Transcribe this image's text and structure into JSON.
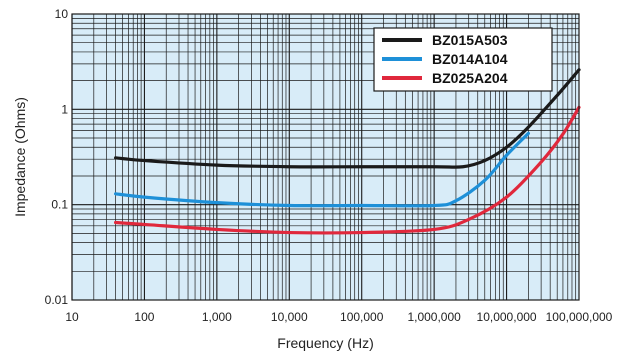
{
  "chart_data": {
    "type": "line",
    "title": "",
    "xlabel": "Frequency (Hz)",
    "ylabel": "Impedance (Ohms)",
    "x_scale": "log",
    "y_scale": "log",
    "xlim": [
      10,
      100000000
    ],
    "ylim": [
      0.01,
      10
    ],
    "grid": true,
    "legend_position": "top-right",
    "x_ticks": [
      10,
      100,
      1000,
      10000,
      100000,
      1000000,
      10000000,
      100000000
    ],
    "x_tick_labels": [
      "10",
      "100",
      "1,000",
      "10,000",
      "100,000",
      "1,000,000",
      "10,000,000",
      "100,000,000"
    ],
    "y_ticks": [
      0.01,
      0.1,
      1,
      10
    ],
    "y_tick_labels": [
      "0.01",
      "0.1",
      "1",
      "10"
    ],
    "colors": {
      "plot_background": "#d8ecf8",
      "grid": "#1a1a1a"
    },
    "series": [
      {
        "name": "BZ015A503",
        "color": "#1a1a1a",
        "x": [
          40,
          100,
          1000,
          10000,
          100000,
          1000000,
          2500000,
          5000000,
          10000000,
          20000000,
          50000000,
          100000000
        ],
        "y": [
          0.31,
          0.29,
          0.26,
          0.25,
          0.25,
          0.25,
          0.25,
          0.29,
          0.4,
          0.65,
          1.4,
          2.6
        ]
      },
      {
        "name": "BZ014A104",
        "color": "#1e90d8",
        "x": [
          40,
          100,
          1000,
          10000,
          100000,
          1000000,
          2000000,
          5000000,
          10000000,
          20000000
        ],
        "y": [
          0.13,
          0.12,
          0.105,
          0.098,
          0.098,
          0.098,
          0.11,
          0.18,
          0.33,
          0.56
        ]
      },
      {
        "name": "BZ025A204",
        "color": "#e0283c",
        "x": [
          40,
          100,
          1000,
          10000,
          100000,
          1000000,
          3000000,
          10000000,
          30000000,
          60000000,
          100000000
        ],
        "y": [
          0.065,
          0.062,
          0.055,
          0.051,
          0.051,
          0.055,
          0.07,
          0.12,
          0.28,
          0.55,
          1.05
        ]
      }
    ]
  }
}
